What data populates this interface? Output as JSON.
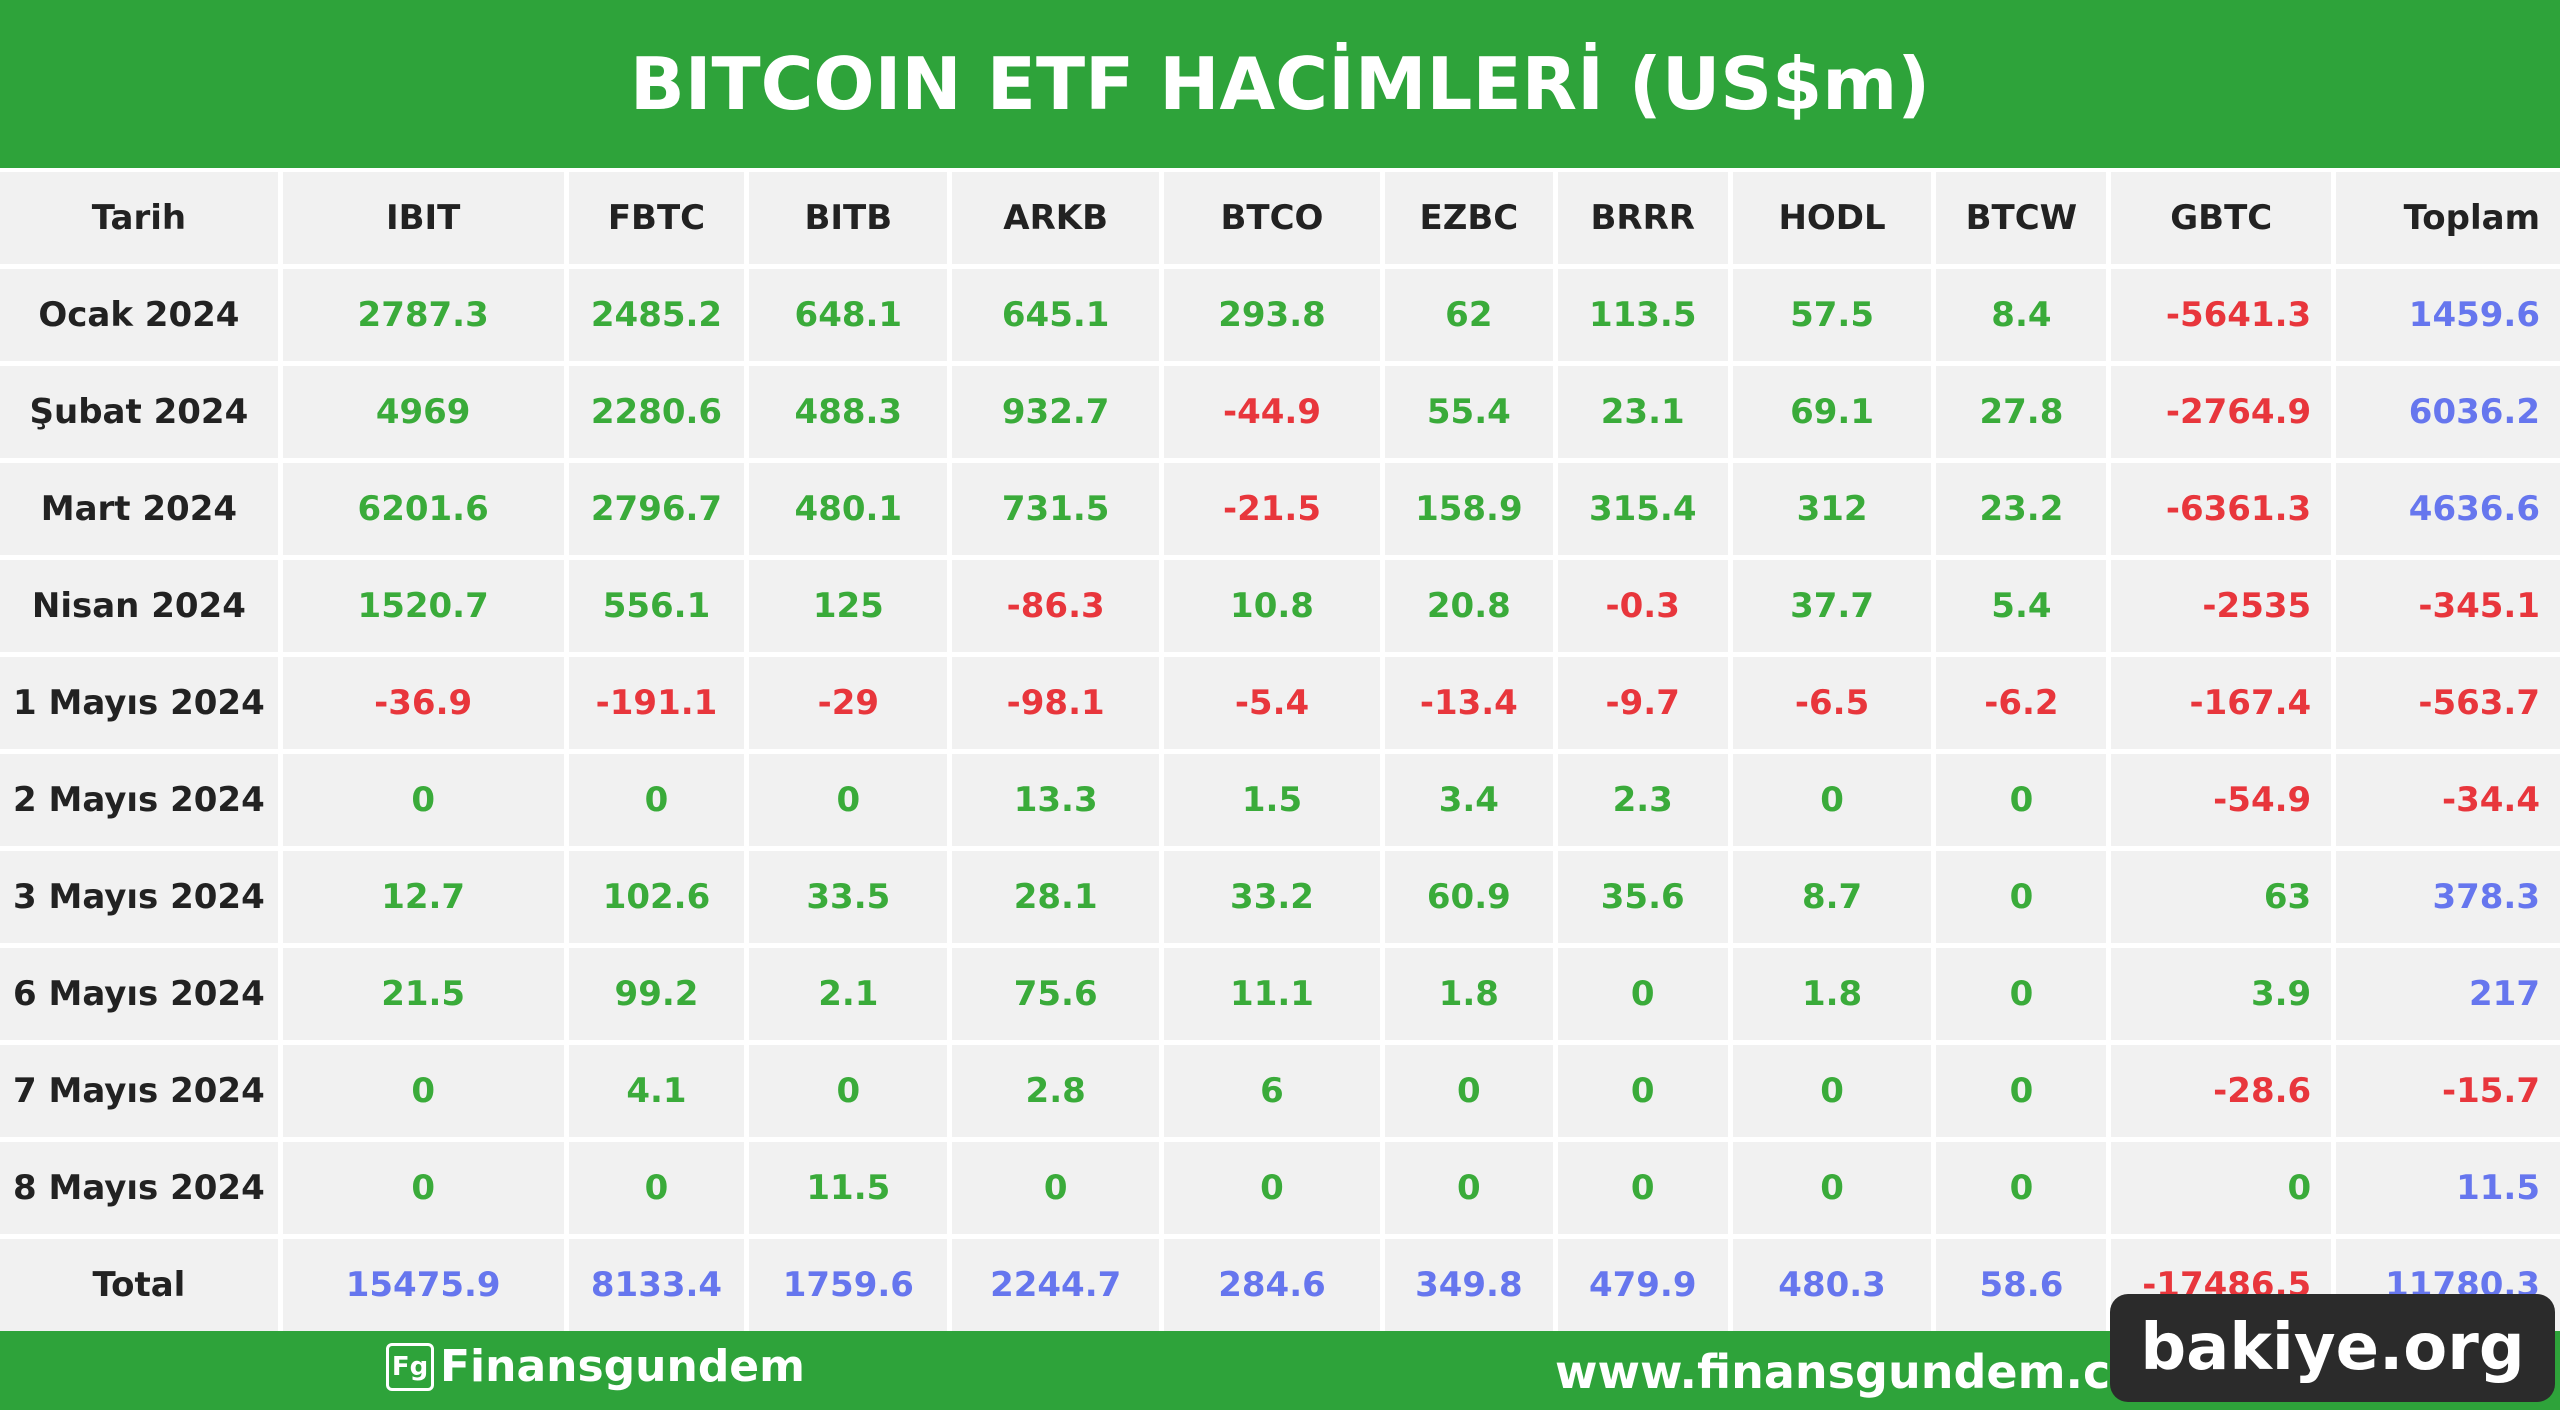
{
  "header": {
    "title": "BITCOIN ETF HACİMLERİ (US$m)"
  },
  "table": {
    "columns": [
      "Tarih",
      "IBIT",
      "FBTC",
      "BITB",
      "ARKB",
      "BTCO",
      "EZBC",
      "BRRR",
      "HODL",
      "BTCW",
      "GBTC",
      "Toplam"
    ],
    "rows": [
      [
        "Ocak 2024",
        "2787.3",
        "2485.2",
        "648.1",
        "645.1",
        "293.8",
        "62",
        "113.5",
        "57.5",
        "8.4",
        "-5641.3",
        "1459.6"
      ],
      [
        "Şubat 2024",
        "4969",
        "2280.6",
        "488.3",
        "932.7",
        "-44.9",
        "55.4",
        "23.1",
        "69.1",
        "27.8",
        "-2764.9",
        "6036.2"
      ],
      [
        "Mart 2024",
        "6201.6",
        "2796.7",
        "480.1",
        "731.5",
        "-21.5",
        "158.9",
        "315.4",
        "312",
        "23.2",
        "-6361.3",
        "4636.6"
      ],
      [
        "Nisan 2024",
        "1520.7",
        "556.1",
        "125",
        "-86.3",
        "10.8",
        "20.8",
        "-0.3",
        "37.7",
        "5.4",
        "-2535",
        "-345.1"
      ],
      [
        "1 Mayıs 2024",
        "-36.9",
        "-191.1",
        "-29",
        "-98.1",
        "-5.4",
        "-13.4",
        "-9.7",
        "-6.5",
        "-6.2",
        "-167.4",
        "-563.7"
      ],
      [
        "2 Mayıs 2024",
        "0",
        "0",
        "0",
        "13.3",
        "1.5",
        "3.4",
        "2.3",
        "0",
        "0",
        "-54.9",
        "-34.4"
      ],
      [
        "3 Mayıs 2024",
        "12.7",
        "102.6",
        "33.5",
        "28.1",
        "33.2",
        "60.9",
        "35.6",
        "8.7",
        "0",
        "63",
        "378.3"
      ],
      [
        "6 Mayıs 2024",
        "21.5",
        "99.2",
        "2.1",
        "75.6",
        "11.1",
        "1.8",
        "0",
        "1.8",
        "0",
        "3.9",
        "217"
      ],
      [
        "7 Mayıs 2024",
        "0",
        "4.1",
        "0",
        "2.8",
        "6",
        "0",
        "0",
        "0",
        "0",
        "-28.6",
        "-15.7"
      ],
      [
        "8 Mayıs 2024",
        "0",
        "0",
        "11.5",
        "0",
        "0",
        "0",
        "0",
        "0",
        "0",
        "0",
        "11.5"
      ]
    ],
    "total": [
      "Total",
      "15475.9",
      "8133.4",
      "1759.6",
      "2244.7",
      "284.6",
      "349.8",
      "479.9",
      "480.3",
      "58.6",
      "-17486.5",
      "11780.3"
    ]
  },
  "footer": {
    "brand": "Finansgundem",
    "url": "www.finansgundem.com.tr"
  },
  "watermark": "bakiye.org"
}
